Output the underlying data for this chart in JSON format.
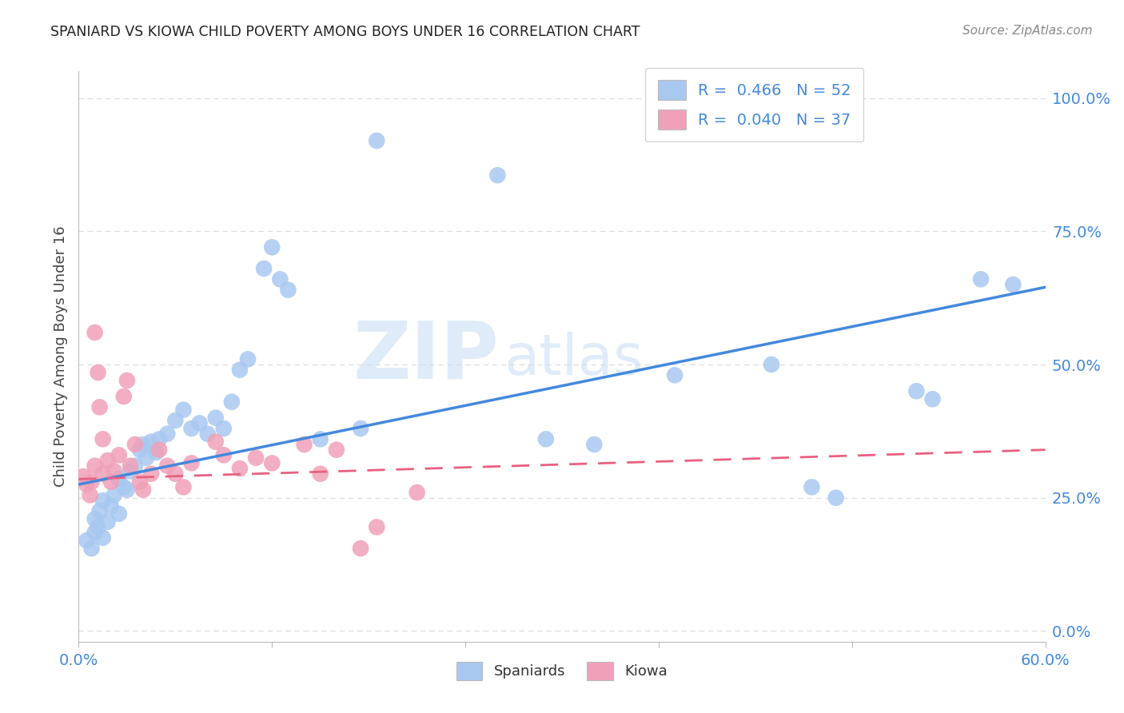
{
  "title": "SPANIARD VS KIOWA CHILD POVERTY AMONG BOYS UNDER 16 CORRELATION CHART",
  "source": "Source: ZipAtlas.com",
  "ylabel": "Child Poverty Among Boys Under 16",
  "ytick_labels": [
    "0.0%",
    "25.0%",
    "50.0%",
    "75.0%",
    "100.0%"
  ],
  "ytick_values": [
    0.0,
    0.25,
    0.5,
    0.75,
    1.0
  ],
  "xlim": [
    0.0,
    0.6
  ],
  "ylim": [
    -0.02,
    1.05
  ],
  "watermark_zip": "ZIP",
  "watermark_atlas": "atlas",
  "blue_color": "#A8C8F0",
  "pink_color": "#F0A0B8",
  "blue_line_color": "#4488DD",
  "pink_line_color": "#E86080",
  "title_color": "#222222",
  "source_color": "#888888",
  "axis_label_color": "#4488DD",
  "legend_text_color": "#4488DD",
  "grid_color": "#DDDDDD",
  "blue_line_x": [
    0.0,
    0.6
  ],
  "blue_line_y": [
    0.275,
    0.645
  ],
  "pink_line_x": [
    0.0,
    0.6
  ],
  "pink_line_y": [
    0.285,
    0.34
  ],
  "spaniards_x": [
    0.005,
    0.008,
    0.01,
    0.01,
    0.012,
    0.013,
    0.015,
    0.015,
    0.018,
    0.02,
    0.022,
    0.025,
    0.025,
    0.028,
    0.03,
    0.032,
    0.035,
    0.038,
    0.04,
    0.042,
    0.045,
    0.048,
    0.05,
    0.055,
    0.06,
    0.065,
    0.07,
    0.075,
    0.08,
    0.085,
    0.09,
    0.095,
    0.1,
    0.105,
    0.115,
    0.12,
    0.125,
    0.13,
    0.15,
    0.175,
    0.185,
    0.26,
    0.29,
    0.32,
    0.37,
    0.43,
    0.455,
    0.47,
    0.52,
    0.53,
    0.56,
    0.58
  ],
  "spaniards_y": [
    0.17,
    0.155,
    0.185,
    0.21,
    0.195,
    0.225,
    0.175,
    0.245,
    0.205,
    0.235,
    0.255,
    0.22,
    0.285,
    0.27,
    0.265,
    0.3,
    0.31,
    0.34,
    0.35,
    0.325,
    0.355,
    0.335,
    0.36,
    0.37,
    0.395,
    0.415,
    0.38,
    0.39,
    0.37,
    0.4,
    0.38,
    0.43,
    0.49,
    0.51,
    0.68,
    0.72,
    0.66,
    0.64,
    0.36,
    0.38,
    0.92,
    0.855,
    0.36,
    0.35,
    0.48,
    0.5,
    0.27,
    0.25,
    0.45,
    0.435,
    0.66,
    0.65
  ],
  "kiowa_x": [
    0.003,
    0.005,
    0.007,
    0.008,
    0.01,
    0.01,
    0.012,
    0.013,
    0.015,
    0.015,
    0.018,
    0.02,
    0.022,
    0.025,
    0.028,
    0.03,
    0.032,
    0.035,
    0.038,
    0.04,
    0.045,
    0.05,
    0.055,
    0.06,
    0.065,
    0.07,
    0.085,
    0.09,
    0.1,
    0.11,
    0.12,
    0.14,
    0.15,
    0.16,
    0.175,
    0.185,
    0.21
  ],
  "kiowa_y": [
    0.29,
    0.275,
    0.255,
    0.28,
    0.56,
    0.31,
    0.485,
    0.42,
    0.36,
    0.295,
    0.32,
    0.28,
    0.3,
    0.33,
    0.44,
    0.47,
    0.31,
    0.35,
    0.28,
    0.265,
    0.295,
    0.34,
    0.31,
    0.295,
    0.27,
    0.315,
    0.355,
    0.33,
    0.305,
    0.325,
    0.315,
    0.35,
    0.295,
    0.34,
    0.155,
    0.195,
    0.26
  ]
}
